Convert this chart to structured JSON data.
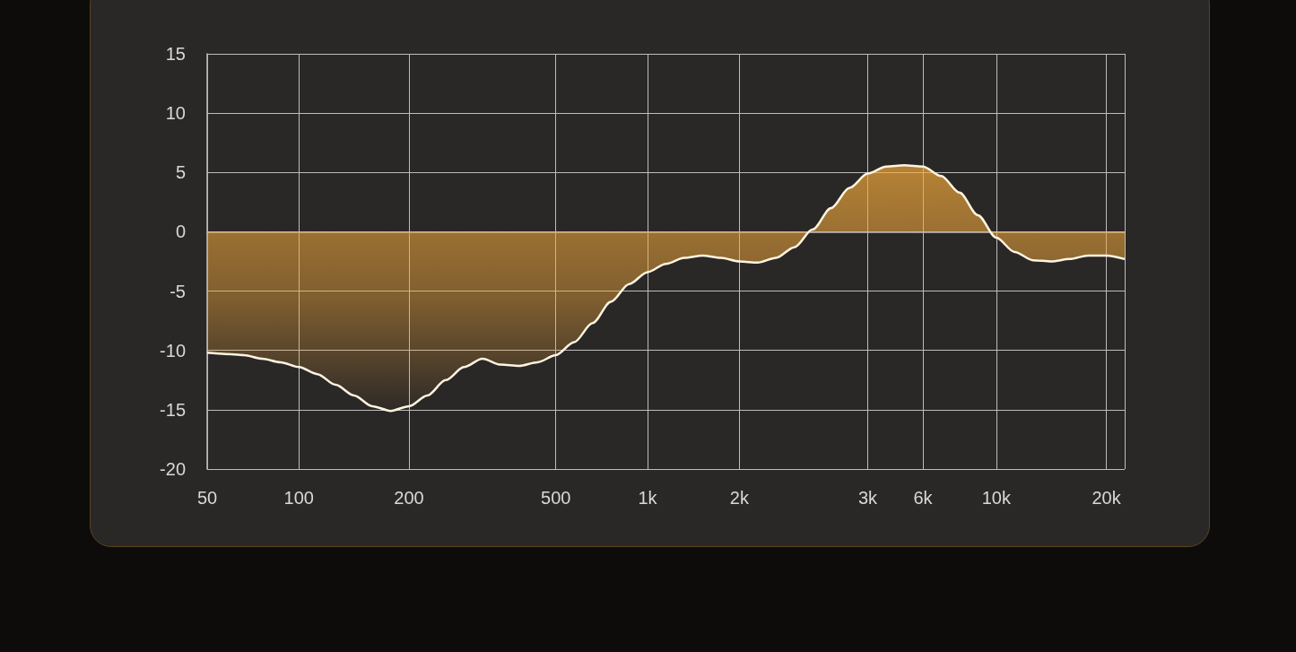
{
  "chart_data": {
    "type": "area",
    "categories": [
      "50",
      null,
      null,
      null,
      null,
      "100",
      null,
      null,
      null,
      null,
      null,
      "200",
      null,
      null,
      null,
      null,
      null,
      null,
      null,
      "500",
      null,
      null,
      null,
      null,
      "1k",
      null,
      null,
      null,
      null,
      "2k",
      null,
      null,
      null,
      null,
      null,
      null,
      "3k",
      null,
      null,
      "6k",
      null,
      null,
      null,
      "10k",
      null,
      null,
      null,
      null,
      null,
      "20k",
      null
    ],
    "series": [
      {
        "color": "#f2a93b",
        "values": [
          -10.2,
          -10.3,
          -10.4,
          -10.7,
          -11.0,
          -11.4,
          -12.0,
          -12.9,
          -13.8,
          -14.7,
          -15.1,
          -14.7,
          -13.8,
          -12.5,
          -11.4,
          -10.7,
          -11.2,
          -11.3,
          -11.0,
          -10.4,
          -9.3,
          -7.7,
          -5.9,
          -4.4,
          -3.4,
          -2.7,
          -2.2,
          -2.0,
          -2.2,
          -2.5,
          -2.6,
          -2.2,
          -1.3,
          0.2,
          2.0,
          3.7,
          4.9,
          5.5,
          5.6,
          5.5,
          4.7,
          3.3,
          1.4,
          -0.5,
          -1.7,
          -2.4,
          -2.5,
          -2.3,
          -2.0,
          -2.0,
          -2.3
        ]
      }
    ],
    "ylim": [
      -20,
      15
    ],
    "yticks": [
      -20,
      -15,
      -10,
      -5,
      0,
      5,
      10,
      15
    ],
    "grid": true,
    "marker": "none"
  }
}
